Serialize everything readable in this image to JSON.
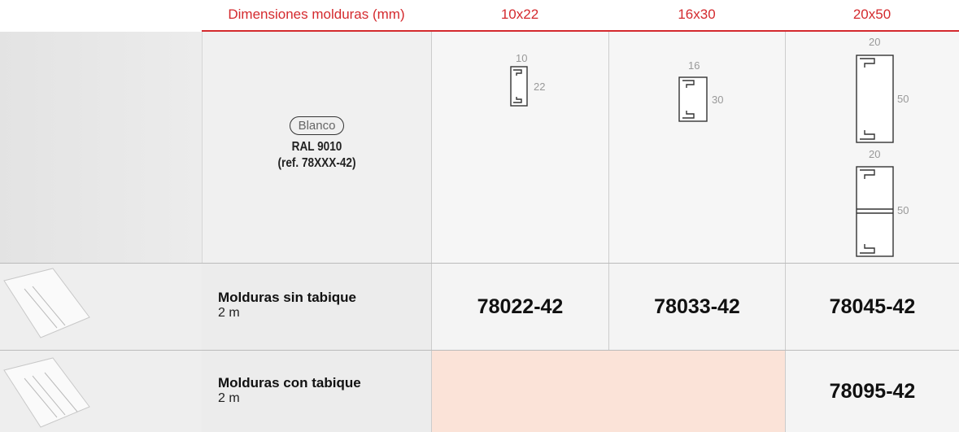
{
  "header": {
    "label": "Dimensiones molduras (mm)",
    "sizes": [
      "10x22",
      "16x30",
      "20x50"
    ]
  },
  "finish": {
    "color": "Blanco",
    "ral": "RAL 9010",
    "ref": "(ref. 78XXX-42)"
  },
  "profiles": [
    {
      "width": 10,
      "height": 22
    },
    {
      "width": 16,
      "height": 30
    },
    {
      "width": 20,
      "height": 50
    },
    {
      "width": 20,
      "height": 50
    }
  ],
  "rows": [
    {
      "name": "Molduras sin tabique",
      "length": "2 m",
      "refs": [
        "78022-42",
        "78033-42",
        "78045-42"
      ]
    },
    {
      "name": "Molduras con tabique",
      "length": "2 m",
      "refs": [
        "78095-42"
      ]
    }
  ]
}
